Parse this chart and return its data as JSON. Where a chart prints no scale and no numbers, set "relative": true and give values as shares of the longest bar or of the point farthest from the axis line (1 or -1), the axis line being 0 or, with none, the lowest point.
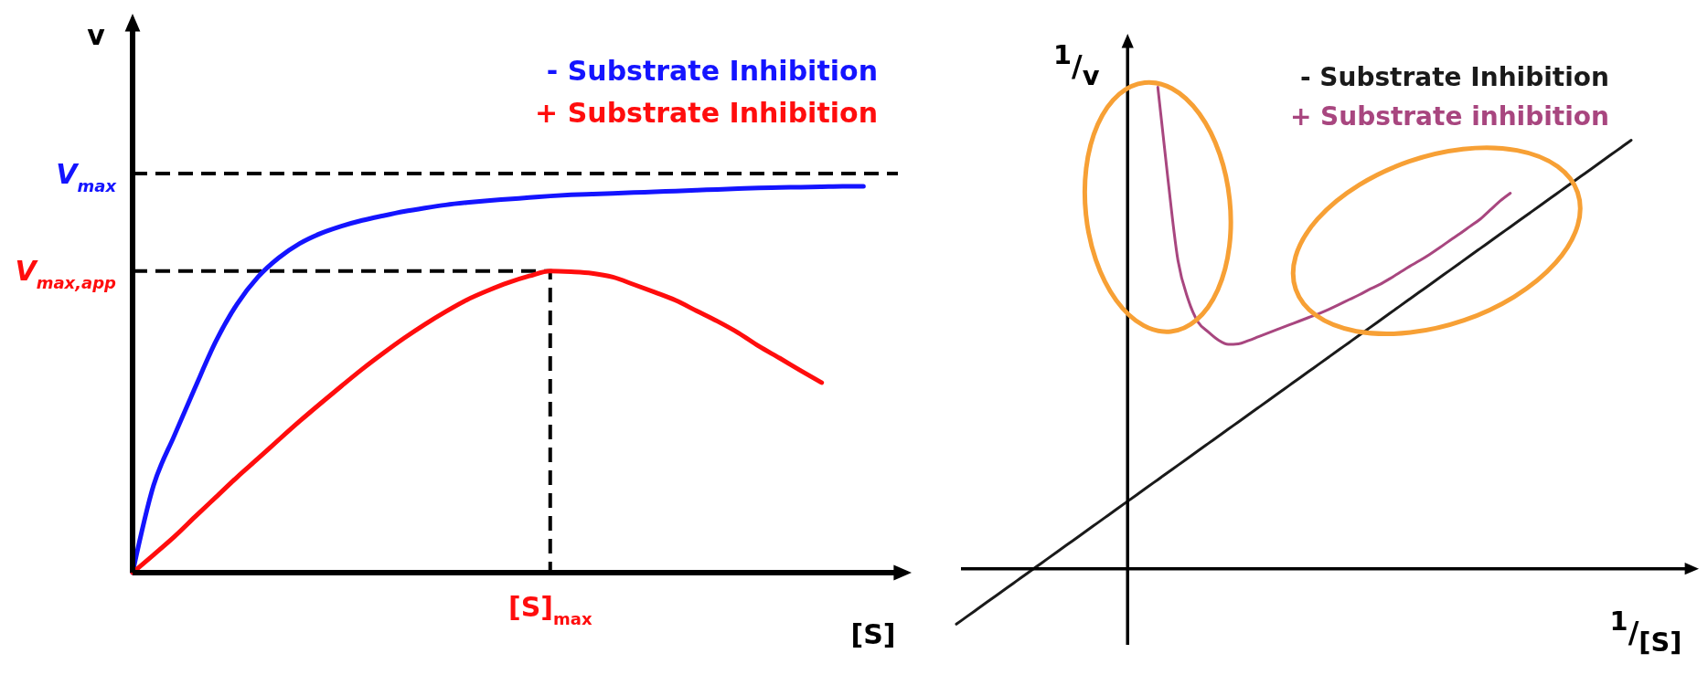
{
  "chart_data": [
    {
      "type": "line",
      "relative": true,
      "xlabel": "[S]",
      "ylabel": "v",
      "categories": [
        null,
        null,
        null,
        null,
        null,
        null,
        null,
        null,
        null,
        null,
        null,
        null,
        null,
        null,
        null,
        null,
        null,
        null,
        null,
        null,
        null,
        null,
        null,
        null,
        null,
        null,
        null,
        null,
        null,
        null,
        null,
        null,
        null,
        null,
        null,
        null,
        null,
        null
      ],
      "series": [
        {
          "name": "- Substrate Inhibition",
          "color": "#1414ff",
          "values": [
            0,
            0.225,
            0.355,
            0.48,
            0.6,
            0.695,
            0.765,
            0.815,
            0.852,
            0.878,
            0.897,
            0.912,
            0.924,
            0.935,
            0.944,
            0.952,
            0.958,
            0.963,
            0.967,
            0.971,
            0.975,
            0.978,
            0.98,
            0.982,
            0.984,
            0.986,
            0.988,
            0.99,
            0.992,
            0.994,
            0.996,
            0.997,
            0.998,
            0.999,
            1,
            1,
            null,
            null
          ]
        },
        {
          "name": "+ Substrate Inhibition",
          "color": "#ff0d0d",
          "values": [
            0,
            0.046,
            0.093,
            0.145,
            0.196,
            0.247,
            0.295,
            0.344,
            0.392,
            0.438,
            0.483,
            0.527,
            0.568,
            0.607,
            0.643,
            0.676,
            0.706,
            0.73,
            0.751,
            0.768,
            0.781,
            0.779,
            0.775,
            0.765,
            0.746,
            0.726,
            0.705,
            0.678,
            0.651,
            0.621,
            0.586,
            0.555,
            0.523,
            0.492,
            null,
            null,
            null,
            null
          ]
        }
      ],
      "ref_lines": [
        {
          "axis": "y",
          "value": 1.033,
          "color": "#000000",
          "line_style": "dashed"
        },
        {
          "axis": "y",
          "value": 0.781,
          "color": "#000000",
          "line_style": "dashed"
        }
      ],
      "annotations": [
        "V$_{max}$",
        "V$_{max,app}$",
        "[S]$_{max}$"
      ],
      "legend": "top right"
    },
    {
      "type": "line",
      "relative": true,
      "xlabel": "$^{1}$/$_{[S]}$",
      "ylabel": "$^{1}$/$_{v}$",
      "categories": [
        null,
        null,
        null,
        null,
        null,
        null,
        null,
        null,
        null,
        null,
        null,
        null,
        null,
        null,
        null,
        null,
        null,
        null,
        null,
        null,
        null,
        null,
        null,
        null,
        null,
        null,
        null,
        null,
        null,
        null,
        null,
        null,
        null,
        null,
        null,
        null,
        null,
        null,
        null,
        null,
        null,
        null,
        null,
        null,
        null,
        null,
        null,
        null,
        null,
        null,
        null,
        null,
        null,
        null,
        null,
        null,
        null,
        null,
        null,
        null,
        null,
        null,
        null,
        null,
        null,
        null,
        null,
        null
      ],
      "series": [
        {
          "name": "- Substrate Inhibition",
          "color": "#1a1a1a",
          "values": [
            -0.115,
            -0.1,
            -0.085,
            -0.07,
            -0.055,
            -0.04,
            -0.025,
            -0.01,
            0.005,
            0.02,
            0.035,
            0.05,
            0.065,
            0.08,
            0.095,
            0.11,
            0.125,
            0.14,
            0.155,
            0.17,
            0.185,
            0.2,
            0.215,
            0.23,
            0.245,
            0.26,
            0.275,
            0.29,
            0.305,
            0.32,
            0.335,
            0.35,
            0.365,
            0.38,
            0.395,
            0.41,
            0.425,
            0.44,
            0.455,
            0.47,
            0.485,
            0.5,
            0.515,
            0.53,
            0.545,
            0.56,
            0.575,
            0.59,
            0.605,
            0.62,
            0.635,
            0.65,
            0.665,
            0.68,
            0.695,
            0.71,
            0.725,
            0.74,
            0.755,
            0.77,
            0.785,
            0.8,
            0.815,
            0.83,
            0.845,
            0.86,
            0.875,
            0.89
          ]
        },
        {
          "name": "+ Substrate inhibition",
          "color": "#a8467f",
          "values": [
            null,
            null,
            null,
            null,
            null,
            null,
            null,
            null,
            null,
            null,
            null,
            null,
            null,
            null,
            null,
            null,
            null,
            null,
            null,
            null,
            1,
            0.81,
            0.64,
            0.56,
            0.512,
            0.492,
            0.475,
            0.466,
            0.467,
            0.474,
            0.482,
            0.49,
            0.498,
            0.506,
            0.514,
            0.522,
            0.53,
            0.539,
            0.549,
            0.559,
            0.569,
            0.58,
            0.59,
            0.602,
            0.615,
            0.628,
            0.64,
            0.653,
            0.667,
            0.682,
            0.696,
            0.711,
            0.726,
            0.745,
            0.764,
            0.78,
            null,
            null,
            null,
            null,
            null,
            null,
            null,
            null,
            null,
            null,
            null,
            null
          ]
        }
      ],
      "legend": "top right"
    }
  ]
}
